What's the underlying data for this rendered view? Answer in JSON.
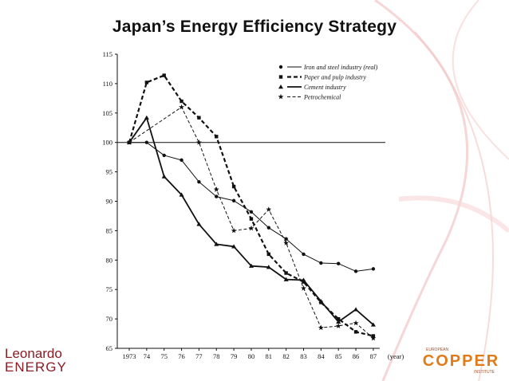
{
  "slide": {
    "title": "Japan’s Energy Efficiency Strategy",
    "logo_left": {
      "line1": "Leonardo",
      "line2": "ENERGY"
    },
    "logo_right": {
      "top": "EUROPEAN",
      "main": "COPPER",
      "bottom": "INSTITUTE"
    },
    "colors": {
      "logo_left": "#8a1c24",
      "logo_right": "#e07b1a",
      "decoration": "#f2c4c4"
    }
  },
  "chart_data": {
    "type": "line",
    "title": "",
    "xlabel": "(year)",
    "ylabel": "",
    "categories": [
      "1973",
      "74",
      "75",
      "76",
      "77",
      "78",
      "79",
      "80",
      "81",
      "82",
      "83",
      "84",
      "85",
      "86",
      "87"
    ],
    "ylim": [
      65,
      115
    ],
    "yticks": [
      "65",
      "70",
      "75",
      "80",
      "85",
      "90",
      "95",
      "100",
      "105",
      "110",
      "115"
    ],
    "reference_line": 100,
    "grid": false,
    "legend": "top-right",
    "series": [
      {
        "name": "Iron and steel industry (real)",
        "marker": "circle",
        "style": "thin-solid",
        "values": [
          100,
          100,
          97.8,
          97,
          93.3,
          90.8,
          90.1,
          88.2,
          85.5,
          83.6,
          81,
          79.5,
          79.4,
          78.1,
          78.5
        ]
      },
      {
        "name": "Paper and pulp industry",
        "marker": "square",
        "style": "dashed-bold",
        "values": [
          100,
          110.2,
          111.4,
          107,
          104.2,
          101,
          92.5,
          87,
          81,
          77.8,
          76.3,
          72.8,
          70,
          67.8,
          67.1
        ]
      },
      {
        "name": "Cement industry",
        "marker": "triangle",
        "style": "thick-solid",
        "values": [
          100,
          104.2,
          94.2,
          91.1,
          86.1,
          82.7,
          82.3,
          79,
          78.8,
          76.7,
          76.6,
          73,
          69.5,
          71.6,
          69
        ]
      },
      {
        "name": "Petrochemical",
        "marker": "star",
        "style": "thin-dashed",
        "values": [
          100,
          null,
          null,
          106,
          100,
          92,
          85,
          85.4,
          88.6,
          82.9,
          75.2,
          68.5,
          68.8,
          69.3,
          66.7
        ]
      }
    ]
  }
}
